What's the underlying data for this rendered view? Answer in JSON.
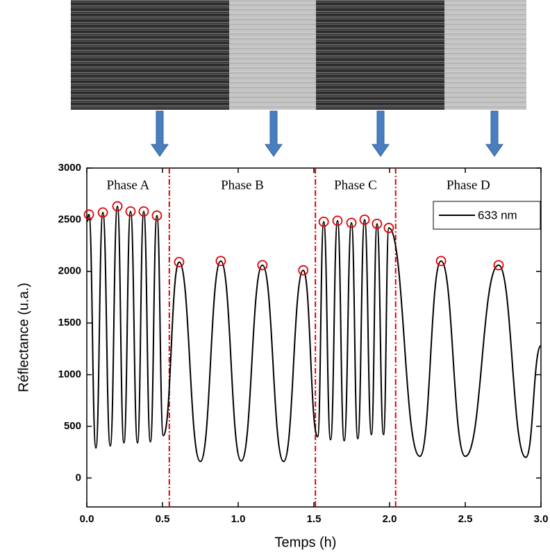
{
  "chart_data": {
    "type": "line",
    "x_label": "Temps (h)",
    "y_label": "Réflectance (u.a.)",
    "series": [
      {
        "name": "633 nm",
        "color": "#000000",
        "x": [
          0.0,
          0.014,
          0.06,
          0.106,
          0.155,
          0.202,
          0.245,
          0.289,
          0.335,
          0.376,
          0.42,
          0.463,
          0.505,
          0.61,
          0.75,
          0.885,
          1.02,
          1.16,
          1.3,
          1.43,
          1.525,
          1.565,
          1.61,
          1.656,
          1.7,
          1.748,
          1.79,
          1.835,
          1.88,
          1.917,
          1.96,
          1.995,
          2.2,
          2.34,
          2.5,
          2.72,
          2.9,
          3.0
        ],
        "values": [
          2480,
          2550,
          290,
          2570,
          310,
          2630,
          340,
          2580,
          340,
          2580,
          350,
          2540,
          410,
          2090,
          160,
          2100,
          165,
          2060,
          160,
          2010,
          400,
          2480,
          370,
          2490,
          360,
          2470,
          380,
          2500,
          420,
          2460,
          420,
          2420,
          210,
          2100,
          210,
          2060,
          200,
          1280
        ]
      }
    ],
    "peak_markers": {
      "color": "#e00000",
      "x": [
        0.014,
        0.106,
        0.202,
        0.289,
        0.376,
        0.463,
        0.61,
        0.885,
        1.16,
        1.43,
        1.565,
        1.656,
        1.748,
        1.835,
        1.917,
        1.995,
        2.34,
        2.72
      ],
      "values": [
        2550,
        2570,
        2630,
        2580,
        2580,
        2540,
        2090,
        2100,
        2060,
        2010,
        2480,
        2490,
        2470,
        2500,
        2460,
        2420,
        2100,
        2060
      ]
    },
    "vlines": {
      "color": "#e00000",
      "x": [
        0.545,
        1.51,
        2.04
      ]
    },
    "annotations": [
      "Phase A",
      "Phase B",
      "Phase C",
      "Phase D"
    ],
    "xlim": [
      0,
      3.0
    ],
    "ylim": [
      -280,
      3000
    ],
    "xticks": [
      {
        "value": 0,
        "label": "0.0"
      },
      0.5,
      {
        "value": 1,
        "label": "1.0"
      },
      1.5,
      {
        "value": 2,
        "label": "2.0"
      },
      2.5,
      {
        "value": 3,
        "label": "3.0"
      }
    ],
    "yticks": [
      0,
      500,
      1000,
      1500,
      2000,
      2500,
      3000
    ],
    "legend": "upper right"
  }
}
